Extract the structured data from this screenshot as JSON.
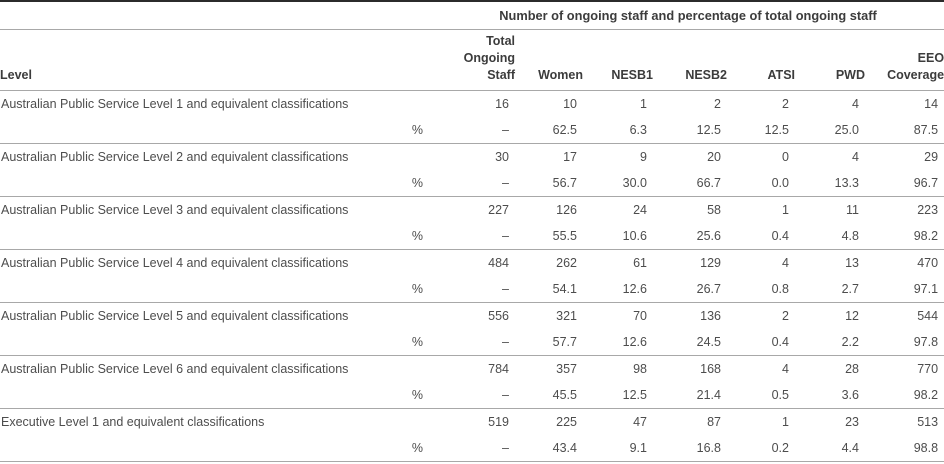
{
  "table": {
    "span_header": "Number of ongoing staff and percentage of total ongoing staff",
    "percent_symbol": "%",
    "columns": [
      {
        "id": "level",
        "lines": [
          "Level"
        ]
      },
      {
        "id": "total-ongoing-staff",
        "lines": [
          "Total",
          "Ongoing",
          "Staff"
        ]
      },
      {
        "id": "women",
        "lines": [
          "Women"
        ]
      },
      {
        "id": "nesb1",
        "lines": [
          "NESB1"
        ]
      },
      {
        "id": "nesb2",
        "lines": [
          "NESB2"
        ]
      },
      {
        "id": "atsi",
        "lines": [
          "ATSI"
        ]
      },
      {
        "id": "pwd",
        "lines": [
          "PWD"
        ]
      },
      {
        "id": "eeo-coverage",
        "lines": [
          "EEO",
          "Coverage"
        ]
      }
    ],
    "rows": [
      {
        "level": "Australian Public Service Level 1 and equivalent classifications",
        "counts": [
          "16",
          "10",
          "1",
          "2",
          "2",
          "4",
          "14"
        ],
        "percents": [
          "–",
          "62.5",
          "6.3",
          "12.5",
          "12.5",
          "25.0",
          "87.5"
        ]
      },
      {
        "level": "Australian Public Service Level 2 and equivalent classifications",
        "counts": [
          "30",
          "17",
          "9",
          "20",
          "0",
          "4",
          "29"
        ],
        "percents": [
          "–",
          "56.7",
          "30.0",
          "66.7",
          "0.0",
          "13.3",
          "96.7"
        ]
      },
      {
        "level": "Australian Public Service Level 3 and equivalent classifications",
        "counts": [
          "227",
          "126",
          "24",
          "58",
          "1",
          "11",
          "223"
        ],
        "percents": [
          "–",
          "55.5",
          "10.6",
          "25.6",
          "0.4",
          "4.8",
          "98.2"
        ]
      },
      {
        "level": "Australian Public Service Level 4 and equivalent classifications",
        "counts": [
          "484",
          "262",
          "61",
          "129",
          "4",
          "13",
          "470"
        ],
        "percents": [
          "–",
          "54.1",
          "12.6",
          "26.7",
          "0.8",
          "2.7",
          "97.1"
        ]
      },
      {
        "level": "Australian Public Service Level 5 and equivalent classifications",
        "counts": [
          "556",
          "321",
          "70",
          "136",
          "2",
          "12",
          "544"
        ],
        "percents": [
          "–",
          "57.7",
          "12.6",
          "24.5",
          "0.4",
          "2.2",
          "97.8"
        ]
      },
      {
        "level": "Australian Public Service Level 6 and equivalent classifications",
        "counts": [
          "784",
          "357",
          "98",
          "168",
          "4",
          "28",
          "770"
        ],
        "percents": [
          "–",
          "45.5",
          "12.5",
          "21.4",
          "0.5",
          "3.6",
          "98.2"
        ]
      },
      {
        "level": "Executive Level 1 and equivalent classifications",
        "counts": [
          "519",
          "225",
          "47",
          "87",
          "1",
          "23",
          "513"
        ],
        "percents": [
          "–",
          "43.4",
          "9.1",
          "16.8",
          "0.2",
          "4.4",
          "98.8"
        ]
      }
    ]
  },
  "colors": {
    "top_border": "#2b2b2b",
    "rule": "#a8a8a8",
    "header_text": "#3c3c3c",
    "body_text": "#4d4d4d"
  }
}
